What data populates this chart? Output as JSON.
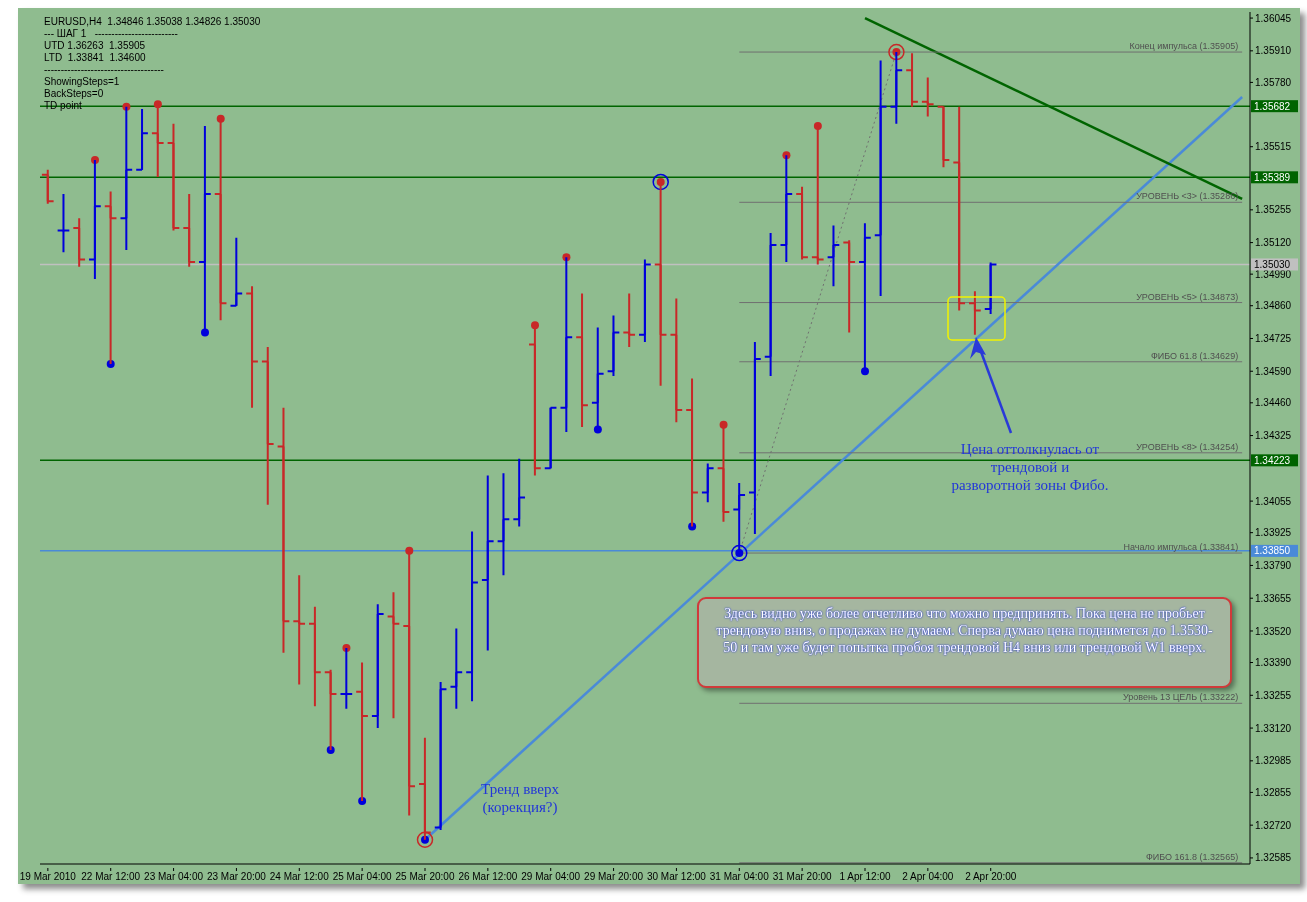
{
  "chart_data": {
    "type": "candlestick",
    "title": "EURUSD,H4  1.34846 1.35038 1.34826 1.35030",
    "categories": [
      "19 Mar 2010",
      null,
      null,
      null,
      "22 Mar 12:00",
      null,
      null,
      null,
      "23 Mar 04:00",
      null,
      null,
      null,
      "23 Mar 20:00",
      null,
      null,
      null,
      "24 Mar 12:00",
      null,
      null,
      null,
      "25 Mar 04:00",
      null,
      null,
      null,
      "25 Mar 20:00",
      null,
      null,
      null,
      "26 Mar 12:00",
      null,
      null,
      null,
      "29 Mar 04:00",
      null,
      null,
      null,
      "29 Mar 20:00",
      null,
      null,
      null,
      "30 Mar 12:00",
      null,
      null,
      null,
      "31 Mar 04:00",
      null,
      null,
      null,
      "31 Mar 20:00",
      null,
      null,
      null,
      "1 Apr 12:00",
      null,
      null,
      null,
      "2 Apr 04:00",
      null,
      null,
      null,
      "2 Apr 20:00",
      null,
      null,
      null,
      null,
      null,
      null,
      null,
      null,
      null,
      null,
      null,
      null,
      null,
      null,
      null,
      null
    ],
    "ohlc": [
      [
        1.354,
        1.3542,
        1.3528,
        1.3529
      ],
      [
        1.3517,
        1.3532,
        1.3508,
        1.3517
      ],
      [
        1.3518,
        1.3522,
        1.3502,
        1.3505
      ],
      [
        1.3505,
        1.3546,
        1.3497,
        1.3527
      ],
      [
        1.3527,
        1.3533,
        1.3462,
        1.3522
      ],
      [
        1.3522,
        1.3568,
        1.3509,
        1.3542
      ],
      [
        1.3542,
        1.3567,
        1.3542,
        1.3557
      ],
      [
        1.3557,
        1.3569,
        1.3539,
        1.3553
      ],
      [
        1.3553,
        1.3561,
        1.3517,
        1.3518
      ],
      [
        1.3518,
        1.3532,
        1.3502,
        1.3504
      ],
      [
        1.3504,
        1.356,
        1.3475,
        1.3532
      ],
      [
        1.3532,
        1.3563,
        1.348,
        1.3487
      ],
      [
        1.3486,
        1.3514,
        1.3486,
        1.3491
      ],
      [
        1.3491,
        1.3494,
        1.3444,
        1.3463
      ],
      [
        1.3463,
        1.3469,
        1.3404,
        1.3429
      ],
      [
        1.3428,
        1.3444,
        1.3343,
        1.3356
      ],
      [
        1.3356,
        1.3375,
        1.333,
        1.3355
      ],
      [
        1.3355,
        1.3362,
        1.3321,
        1.3335
      ],
      [
        1.3335,
        1.3336,
        1.3303,
        1.3326
      ],
      [
        1.3326,
        1.3345,
        1.332,
        1.3326
      ],
      [
        1.3327,
        1.3339,
        1.3282,
        1.3317
      ],
      [
        1.3317,
        1.3363,
        1.3312,
        1.3359
      ],
      [
        1.3358,
        1.3368,
        1.3316,
        1.3355
      ],
      [
        1.3354,
        1.3385,
        1.3276,
        1.3288
      ],
      [
        1.3289,
        1.3308,
        1.3266,
        1.3269
      ],
      [
        1.3271,
        1.3331,
        1.327,
        1.3328
      ],
      [
        1.3329,
        1.3353,
        1.332,
        1.3335
      ],
      [
        1.3335,
        1.3393,
        1.3323,
        1.3372
      ],
      [
        1.3373,
        1.3416,
        1.3344,
        1.3389
      ],
      [
        1.3389,
        1.3417,
        1.3375,
        1.3398
      ],
      [
        1.3398,
        1.3423,
        1.3395,
        1.3407
      ],
      [
        1.347,
        1.3478,
        1.3416,
        1.3419
      ],
      [
        1.3419,
        1.3444,
        1.3419,
        1.3444
      ],
      [
        1.3444,
        1.3506,
        1.3434,
        1.3473
      ],
      [
        1.3473,
        1.3491,
        1.3436,
        1.3445
      ],
      [
        1.3446,
        1.3477,
        1.3435,
        1.3458
      ],
      [
        1.3459,
        1.3482,
        1.3457,
        1.3475
      ],
      [
        1.3475,
        1.3491,
        1.3469,
        1.3474
      ],
      [
        1.3474,
        1.3505,
        1.3471,
        1.3503
      ],
      [
        1.3503,
        1.3537,
        1.3453,
        1.3474
      ],
      [
        1.3474,
        1.3489,
        1.3438,
        1.3443
      ],
      [
        1.3443,
        1.3456,
        1.3395,
        1.3409
      ],
      [
        1.3409,
        1.3421,
        1.3405,
        1.3419
      ],
      [
        1.3419,
        1.3437,
        1.3397,
        1.3401
      ],
      [
        1.3402,
        1.3413,
        1.33841,
        1.3408
      ],
      [
        1.3409,
        1.3471,
        1.3392,
        1.3464
      ],
      [
        1.3465,
        1.3516,
        1.3457,
        1.3511
      ],
      [
        1.3511,
        1.3548,
        1.3504,
        1.3532
      ],
      [
        1.3532,
        1.3535,
        1.3505,
        1.3506
      ],
      [
        1.3506,
        1.356,
        1.3503,
        1.3505
      ],
      [
        1.3506,
        1.3519,
        1.3494,
        1.3511
      ],
      [
        1.3512,
        1.3513,
        1.3475,
        1.3504
      ],
      [
        1.3504,
        1.352,
        1.3459,
        1.3514
      ],
      [
        1.3515,
        1.3587,
        1.349,
        1.3568
      ],
      [
        1.3568,
        1.35905,
        1.3561,
        1.3583
      ],
      [
        1.3583,
        1.359,
        1.3568,
        1.357
      ],
      [
        1.357,
        1.358,
        1.3564,
        1.3569
      ],
      [
        1.3568,
        1.3568,
        1.3543,
        1.3546
      ],
      [
        1.3545,
        1.3568,
        1.3484,
        1.3487
      ],
      [
        1.3487,
        1.3492,
        1.3474,
        1.3484
      ],
      [
        1.34846,
        1.35038,
        1.34826,
        1.3503
      ],
      null,
      null,
      null,
      null,
      null,
      null,
      null,
      null,
      null,
      null,
      null,
      null,
      null,
      null,
      null,
      null
    ],
    "colors": [
      "#c82828",
      "#0000dc",
      "#c82828",
      "#0000dc",
      "#c82828",
      "#0000dc",
      "#0000dc",
      "#c82828",
      "#c82828",
      "#c82828",
      "#0000dc",
      "#c82828",
      "#0000dc",
      "#c82828",
      "#c82828",
      "#c82828",
      "#c82828",
      "#c82828",
      "#c82828",
      "#0000dc",
      "#c82828",
      "#0000dc",
      "#c82828",
      "#c82828",
      "#c82828",
      "#0000dc",
      "#0000dc",
      "#0000dc",
      "#0000dc",
      "#0000dc",
      "#0000dc",
      "#c82828",
      "#0000dc",
      "#0000dc",
      "#c82828",
      "#0000dc",
      "#0000dc",
      "#c82828",
      "#0000dc",
      "#c82828",
      "#c82828",
      "#c82828",
      "#0000dc",
      "#c82828",
      "#0000dc",
      "#0000dc",
      "#0000dc",
      "#0000dc",
      "#c82828",
      "#c82828",
      "#0000dc",
      "#c82828",
      "#0000dc",
      "#0000dc",
      "#0000dc",
      "#c82828",
      "#c82828",
      "#c82828",
      "#c82828",
      "#c82828",
      "#0000dc",
      null,
      null,
      null,
      null,
      null,
      null,
      null,
      null,
      null,
      null,
      null,
      null,
      null,
      null,
      null,
      null
    ],
    "series": [
      {
        "type": "line",
        "color": "#4a8ad8",
        "values": [
          null,
          null,
          null,
          null,
          null,
          null,
          null,
          null,
          null,
          null,
          null,
          null,
          null,
          null,
          null,
          null,
          null,
          null,
          null,
          null,
          null,
          null,
          null,
          null,
          1.3266,
          null,
          null,
          null,
          null,
          null,
          null,
          null,
          null,
          null,
          null,
          null,
          null,
          null,
          null,
          null,
          null,
          null,
          null,
          null,
          null,
          null,
          null,
          null,
          null,
          null,
          null,
          null,
          null,
          null,
          null,
          null,
          null,
          null,
          null,
          null,
          null,
          null,
          null,
          null,
          null,
          null,
          null,
          null,
          null,
          null,
          null,
          null,
          null,
          null,
          null,
          null,
          1.3572
        ]
      },
      {
        "type": "line",
        "color": "#006400",
        "values": [
          null,
          null,
          null,
          null,
          null,
          null,
          null,
          null,
          null,
          null,
          null,
          null,
          null,
          null,
          null,
          null,
          null,
          null,
          null,
          null,
          null,
          null,
          null,
          null,
          null,
          null,
          null,
          null,
          null,
          null,
          null,
          null,
          null,
          null,
          null,
          null,
          null,
          null,
          null,
          null,
          null,
          null,
          null,
          null,
          null,
          null,
          null,
          null,
          null,
          null,
          null,
          null,
          1.36045,
          null,
          null,
          null,
          null,
          null,
          null,
          null,
          null,
          null,
          null,
          null,
          null,
          null,
          null,
          null,
          null,
          null,
          null,
          null,
          null,
          null,
          null,
          null,
          1.353
        ]
      },
      {
        "type": "line",
        "color": "#707070",
        "line_style": "dotted",
        "values": [
          null,
          null,
          null,
          null,
          null,
          null,
          null,
          null,
          null,
          null,
          null,
          null,
          null,
          null,
          null,
          null,
          null,
          null,
          null,
          null,
          null,
          null,
          null,
          null,
          null,
          null,
          null,
          null,
          null,
          null,
          null,
          null,
          null,
          null,
          null,
          null,
          null,
          null,
          null,
          null,
          null,
          null,
          null,
          null,
          1.33841,
          null,
          null,
          null,
          null,
          null,
          null,
          null,
          null,
          null,
          1.35905,
          null,
          null,
          null,
          null,
          null,
          null,
          null,
          null,
          null,
          null,
          null,
          null,
          null,
          null,
          null,
          null,
          null,
          null,
          null,
          null,
          null,
          null
        ]
      },
      {
        "type": "line",
        "name": "Конец импульса (1.35905)",
        "color": "#707070",
        "values": [
          null,
          null,
          null,
          null,
          null,
          null,
          null,
          null,
          null,
          null,
          null,
          null,
          null,
          null,
          null,
          null,
          null,
          null,
          null,
          null,
          null,
          null,
          null,
          null,
          null,
          null,
          null,
          null,
          null,
          null,
          null,
          null,
          null,
          null,
          null,
          null,
          null,
          null,
          null,
          null,
          null,
          null,
          null,
          null,
          1.35905,
          null,
          null,
          null,
          null,
          null,
          null,
          null,
          null,
          null,
          null,
          null,
          null,
          null,
          null,
          null,
          null,
          null,
          null,
          null,
          null,
          null,
          null,
          null,
          null,
          null,
          null,
          null,
          null,
          null,
          null,
          null,
          1.35905
        ]
      },
      {
        "type": "line",
        "name": "УРОВЕНЬ <3> (1.35286)",
        "color": "#707070",
        "values": [
          null,
          null,
          null,
          null,
          null,
          null,
          null,
          null,
          null,
          null,
          null,
          null,
          null,
          null,
          null,
          null,
          null,
          null,
          null,
          null,
          null,
          null,
          null,
          null,
          null,
          null,
          null,
          null,
          null,
          null,
          null,
          null,
          null,
          null,
          null,
          null,
          null,
          null,
          null,
          null,
          null,
          null,
          null,
          null,
          1.35286,
          null,
          null,
          null,
          null,
          null,
          null,
          null,
          null,
          null,
          null,
          null,
          null,
          null,
          null,
          null,
          null,
          null,
          null,
          null,
          null,
          null,
          null,
          null,
          null,
          null,
          null,
          null,
          null,
          null,
          null,
          null,
          1.35286
        ]
      },
      {
        "type": "line",
        "name": "УРОВЕНЬ <5> (1.34873)",
        "color": "#707070",
        "values": [
          null,
          null,
          null,
          null,
          null,
          null,
          null,
          null,
          null,
          null,
          null,
          null,
          null,
          null,
          null,
          null,
          null,
          null,
          null,
          null,
          null,
          null,
          null,
          null,
          null,
          null,
          null,
          null,
          null,
          null,
          null,
          null,
          null,
          null,
          null,
          null,
          null,
          null,
          null,
          null,
          null,
          null,
          null,
          null,
          1.34873,
          null,
          null,
          null,
          null,
          null,
          null,
          null,
          null,
          null,
          null,
          null,
          null,
          null,
          null,
          null,
          null,
          null,
          null,
          null,
          null,
          null,
          null,
          null,
          null,
          null,
          null,
          null,
          null,
          null,
          null,
          null,
          1.34873
        ]
      },
      {
        "type": "line",
        "name": "ФИБО 61.8 (1.34629)",
        "color": "#707070",
        "values": [
          null,
          null,
          null,
          null,
          null,
          null,
          null,
          null,
          null,
          null,
          null,
          null,
          null,
          null,
          null,
          null,
          null,
          null,
          null,
          null,
          null,
          null,
          null,
          null,
          null,
          null,
          null,
          null,
          null,
          null,
          null,
          null,
          null,
          null,
          null,
          null,
          null,
          null,
          null,
          null,
          null,
          null,
          null,
          null,
          1.34629,
          null,
          null,
          null,
          null,
          null,
          null,
          null,
          null,
          null,
          null,
          null,
          null,
          null,
          null,
          null,
          null,
          null,
          null,
          null,
          null,
          null,
          null,
          null,
          null,
          null,
          null,
          null,
          null,
          null,
          null,
          null,
          1.34629
        ]
      },
      {
        "type": "line",
        "name": "УРОВЕНЬ <8> (1.34254)",
        "color": "#707070",
        "values": [
          null,
          null,
          null,
          null,
          null,
          null,
          null,
          null,
          null,
          null,
          null,
          null,
          null,
          null,
          null,
          null,
          null,
          null,
          null,
          null,
          null,
          null,
          null,
          null,
          null,
          null,
          null,
          null,
          null,
          null,
          null,
          null,
          null,
          null,
          null,
          null,
          null,
          null,
          null,
          null,
          null,
          null,
          null,
          null,
          1.34254,
          null,
          null,
          null,
          null,
          null,
          null,
          null,
          null,
          null,
          null,
          null,
          null,
          null,
          null,
          null,
          null,
          null,
          null,
          null,
          null,
          null,
          null,
          null,
          null,
          null,
          null,
          null,
          null,
          null,
          null,
          null,
          1.34254
        ]
      },
      {
        "type": "line",
        "name": "Начало импульса (1.33841)",
        "color": "#707070",
        "values": [
          null,
          null,
          null,
          null,
          null,
          null,
          null,
          null,
          null,
          null,
          null,
          null,
          null,
          null,
          null,
          null,
          null,
          null,
          null,
          null,
          null,
          null,
          null,
          null,
          null,
          null,
          null,
          null,
          null,
          null,
          null,
          null,
          null,
          null,
          null,
          null,
          null,
          null,
          null,
          null,
          null,
          null,
          null,
          null,
          1.33841,
          null,
          null,
          null,
          null,
          null,
          null,
          null,
          null,
          null,
          null,
          null,
          null,
          null,
          null,
          null,
          null,
          null,
          null,
          null,
          null,
          null,
          null,
          null,
          null,
          null,
          null,
          null,
          null,
          null,
          null,
          null,
          1.33841
        ]
      },
      {
        "type": "line",
        "name": "Уровень 13 ЦЕЛЬ (1.33222)",
        "color": "#707070",
        "values": [
          null,
          null,
          null,
          null,
          null,
          null,
          null,
          null,
          null,
          null,
          null,
          null,
          null,
          null,
          null,
          null,
          null,
          null,
          null,
          null,
          null,
          null,
          null,
          null,
          null,
          null,
          null,
          null,
          null,
          null,
          null,
          null,
          null,
          null,
          null,
          null,
          null,
          null,
          null,
          null,
          null,
          null,
          null,
          null,
          1.33222,
          null,
          null,
          null,
          null,
          null,
          null,
          null,
          null,
          null,
          null,
          null,
          null,
          null,
          null,
          null,
          null,
          null,
          null,
          null,
          null,
          null,
          null,
          null,
          null,
          null,
          null,
          null,
          null,
          null,
          null,
          null,
          1.33222
        ]
      },
      {
        "type": "line",
        "name": "ФИБО 161.8 (1.32565)",
        "color": "#707070",
        "values": [
          null,
          null,
          null,
          null,
          null,
          null,
          null,
          null,
          null,
          null,
          null,
          null,
          null,
          null,
          null,
          null,
          null,
          null,
          null,
          null,
          null,
          null,
          null,
          null,
          null,
          null,
          null,
          null,
          null,
          null,
          null,
          null,
          null,
          null,
          null,
          null,
          null,
          null,
          null,
          null,
          null,
          null,
          null,
          null,
          1.32565,
          null,
          null,
          null,
          null,
          null,
          null,
          null,
          null,
          null,
          null,
          null,
          null,
          null,
          null,
          null,
          null,
          null,
          null,
          null,
          null,
          null,
          null,
          null,
          null,
          null,
          null,
          null,
          null,
          null,
          null,
          null,
          1.32565
        ]
      },
      {
        "type": "scatter",
        "marker": "circle",
        "color": "#c82828",
        "values": [
          null,
          null,
          null,
          1.3546,
          null,
          1.3568,
          null,
          1.3569,
          null,
          null,
          null,
          1.3563,
          null,
          null,
          null,
          null,
          null,
          null,
          null,
          1.3345,
          null,
          null,
          null,
          1.3385,
          null,
          null,
          null,
          null,
          null,
          null,
          null,
          1.3478,
          null,
          1.3506,
          null,
          null,
          null,
          null,
          null,
          1.3537,
          null,
          null,
          null,
          1.3437,
          null,
          null,
          null,
          1.3548,
          null,
          1.356,
          null,
          null,
          null,
          null,
          1.35905,
          null,
          null,
          null,
          null,
          null,
          null,
          null,
          null,
          null,
          null,
          null,
          null,
          null,
          null,
          null,
          null,
          null,
          null,
          null,
          null,
          null,
          null
        ]
      },
      {
        "type": "scatter",
        "marker": "circle",
        "color": "#0000dc",
        "values": [
          null,
          null,
          null,
          null,
          1.3462,
          null,
          null,
          null,
          null,
          null,
          1.3475,
          null,
          null,
          null,
          null,
          null,
          null,
          null,
          1.3303,
          null,
          1.3282,
          null,
          null,
          null,
          1.3266,
          null,
          null,
          null,
          null,
          null,
          null,
          null,
          null,
          null,
          null,
          1.3435,
          null,
          null,
          null,
          null,
          null,
          1.3395,
          null,
          null,
          1.33841,
          null,
          null,
          null,
          null,
          null,
          null,
          null,
          1.3459,
          null,
          null,
          null,
          null,
          null,
          null,
          null,
          null,
          null,
          null,
          null,
          null,
          null,
          null,
          null,
          null,
          null,
          null,
          null,
          null,
          null,
          null,
          null,
          null
        ]
      },
      {
        "type": "bubble",
        "color": "#c82828",
        "values": [
          null,
          null,
          null,
          null,
          null,
          null,
          null,
          null,
          null,
          null,
          null,
          null,
          null,
          null,
          null,
          null,
          null,
          null,
          null,
          null,
          null,
          null,
          null,
          null,
          1.3266,
          null,
          null,
          null,
          null,
          null,
          null,
          null,
          null,
          null,
          null,
          null,
          null,
          null,
          null,
          null,
          null,
          null,
          null,
          null,
          null,
          null,
          null,
          null,
          null,
          null,
          null,
          null,
          null,
          null,
          1.35905,
          null,
          null,
          null,
          null,
          null,
          null,
          null,
          null,
          null,
          null,
          null,
          null,
          null,
          null,
          null,
          null,
          null,
          null,
          null,
          null,
          null,
          null
        ],
        "sizes": [
          null,
          null,
          null,
          null,
          null,
          null,
          null,
          null,
          null,
          null,
          null,
          null,
          null,
          null,
          null,
          null,
          null,
          null,
          null,
          null,
          null,
          null,
          null,
          null,
          1,
          null,
          null,
          null,
          null,
          null,
          null,
          null,
          null,
          null,
          null,
          null,
          null,
          null,
          null,
          null,
          null,
          null,
          null,
          null,
          null,
          null,
          null,
          null,
          null,
          null,
          null,
          null,
          null,
          null,
          1,
          null,
          null,
          null,
          null,
          null,
          null,
          null,
          null,
          null,
          null,
          null,
          null,
          null,
          null,
          null,
          null,
          null,
          null,
          null,
          null,
          null,
          null
        ]
      },
      {
        "type": "bubble",
        "color": "#0000dc",
        "values": [
          null,
          null,
          null,
          null,
          null,
          null,
          null,
          null,
          null,
          null,
          null,
          null,
          null,
          null,
          null,
          null,
          null,
          null,
          null,
          null,
          null,
          null,
          null,
          null,
          null,
          null,
          null,
          null,
          null,
          null,
          null,
          null,
          null,
          null,
          null,
          null,
          null,
          null,
          null,
          1.3537,
          null,
          null,
          null,
          null,
          1.33841,
          null,
          null,
          null,
          null,
          null,
          null,
          null,
          null,
          null,
          null,
          null,
          null,
          null,
          null,
          null,
          null,
          null,
          null,
          null,
          null,
          null,
          null,
          null,
          null,
          null,
          null,
          null,
          null,
          null,
          null,
          null,
          null
        ],
        "sizes": [
          null,
          null,
          null,
          null,
          null,
          null,
          null,
          null,
          null,
          null,
          null,
          null,
          null,
          null,
          null,
          null,
          null,
          null,
          null,
          null,
          null,
          null,
          null,
          null,
          null,
          null,
          null,
          null,
          null,
          null,
          null,
          null,
          null,
          null,
          null,
          null,
          null,
          null,
          null,
          1,
          null,
          null,
          null,
          null,
          1,
          null,
          null,
          null,
          null,
          null,
          null,
          null,
          null,
          null,
          null,
          null,
          null,
          null,
          null,
          null,
          null,
          null,
          null,
          null,
          null,
          null,
          null,
          null,
          null,
          null,
          null,
          null,
          null,
          null,
          null,
          null,
          null
        ]
      }
    ],
    "ref_lines": [
      {
        "axis": "y",
        "value": 1.35682,
        "label": "1.35682",
        "color": "#006400"
      },
      {
        "axis": "y",
        "value": 1.35389,
        "label": "1.35389",
        "color": "#006400"
      },
      {
        "axis": "y",
        "value": 1.3503,
        "label": "1.35030",
        "color": "#c0c0c0"
      },
      {
        "axis": "y",
        "value": 1.34223,
        "label": "1.34223",
        "color": "#006400"
      },
      {
        "axis": "y",
        "value": 1.3385,
        "label": "1.33850",
        "color": "#4a8ad8"
      }
    ],
    "ylim": [
      1.3256,
      1.3607
    ],
    "yticks": [
      1.36045,
      {
        "value": 1.3591,
        "label": "1.35910"
      },
      {
        "value": 1.3578,
        "label": "1.35780"
      },
      1.35515,
      1.35255,
      {
        "value": 1.3512,
        "label": "1.35120"
      },
      {
        "value": 1.3499,
        "label": "1.34990"
      },
      {
        "value": 1.3486,
        "label": "1.34860"
      },
      1.34725,
      {
        "value": 1.3459,
        "label": "1.34590"
      },
      {
        "value": 1.3446,
        "label": "1.34460"
      },
      1.34325,
      1.34055,
      1.33925,
      {
        "value": 1.3379,
        "label": "1.33790"
      },
      1.33655,
      {
        "value": 1.3352,
        "label": "1.33520"
      },
      {
        "value": 1.3339,
        "label": "1.33390"
      },
      1.33255,
      {
        "value": 1.3312,
        "label": "1.33120"
      },
      1.32985,
      1.32855,
      {
        "value": 1.3272,
        "label": "1.32720"
      },
      1.32585
    ],
    "annotations": [
      "--- ШАГ 1   -------------------------",
      "UTD 1.36263  1.35905",
      "LTD  1.33841  1.34600",
      "------------------------------------",
      "ShowingSteps=1",
      "BackSteps=0",
      "TD point",
      "Здесь видно уже более отчетливо что можно предпринять. Пока цена не пробьет трендовую вниз, о продажах не думаем. Сперва думаю цена поднимется до 1.3530-50 и там уже будет попытка пробоя трендовой H4 вниз или трендовой W1 вверх.",
      "Тренд вверх\n(корекция?)",
      "Цена оттолкнулась от\nтрендовой и\nразворотной зоны Фибо."
    ]
  }
}
